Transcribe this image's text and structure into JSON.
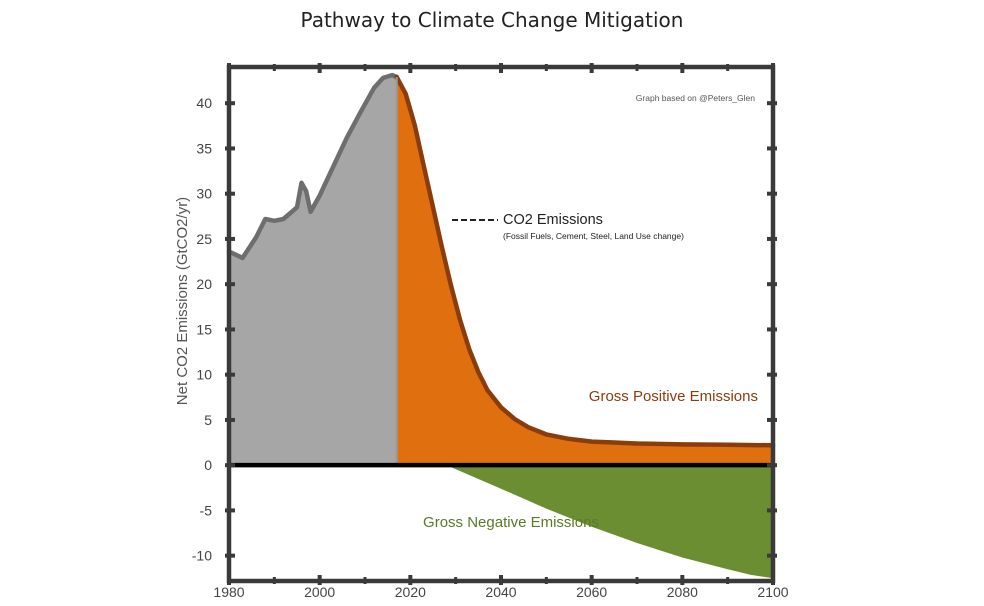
{
  "chart_data": {
    "type": "area",
    "title": "Pathway to Climate Change Mitigation",
    "ylabel": "Net CO2 Emissions (GtCO2/yr)",
    "xlabel": "",
    "xlim": [
      1980,
      2100
    ],
    "ylim": [
      -12.8,
      44
    ],
    "x_ticks": [
      "1980",
      "2000",
      "2020",
      "2040",
      "2060",
      "2080",
      "2100"
    ],
    "y_ticks": [
      "40",
      "35",
      "30",
      "25",
      "20",
      "15",
      "10",
      "5",
      "0",
      "-5",
      "-10"
    ],
    "credit": "Graph based on @Peters_Glen",
    "annotation": {
      "main": "CO2 Emissions",
      "sub": "(Fossil Fuels, Cement, Steel, Land Use change)"
    },
    "series": [
      {
        "name": "CO2 Emissions",
        "color": "#a6a6a6",
        "line_color": "#6e6e6e",
        "x": [
          1980,
          1983,
          1986,
          1988,
          1990,
          1992,
          1995,
          1996,
          1997,
          1998,
          2000,
          2003,
          2006,
          2009,
          2012,
          2014,
          2016,
          2017
        ],
        "values": [
          23.6,
          22.9,
          25.2,
          27.2,
          27.0,
          27.2,
          28.5,
          31.2,
          30.3,
          28.0,
          29.8,
          33.0,
          36.2,
          39.0,
          41.7,
          42.8,
          43.1,
          42.9
        ]
      },
      {
        "name": "Gross Positive Emissions",
        "color": "#e06f0f",
        "line_color": "#8a3d0a",
        "x": [
          2017,
          2019,
          2021,
          2023,
          2025,
          2027,
          2029,
          2031,
          2033,
          2035,
          2037,
          2040,
          2043,
          2046,
          2050,
          2055,
          2060,
          2065,
          2070,
          2080,
          2090,
          2100
        ],
        "values": [
          42.9,
          41.0,
          37.5,
          33.0,
          28.5,
          24.0,
          19.8,
          16.0,
          12.8,
          10.3,
          8.3,
          6.4,
          5.1,
          4.2,
          3.4,
          2.9,
          2.6,
          2.5,
          2.4,
          2.3,
          2.25,
          2.2
        ]
      },
      {
        "name": "Gross Negative Emissions",
        "color": "#6b8e32",
        "x": [
          2028,
          2040,
          2050,
          2060,
          2070,
          2080,
          2090,
          2095,
          2100
        ],
        "values": [
          0,
          -2.6,
          -4.8,
          -6.8,
          -8.6,
          -10.2,
          -11.5,
          -12.1,
          -12.5
        ]
      }
    ]
  }
}
